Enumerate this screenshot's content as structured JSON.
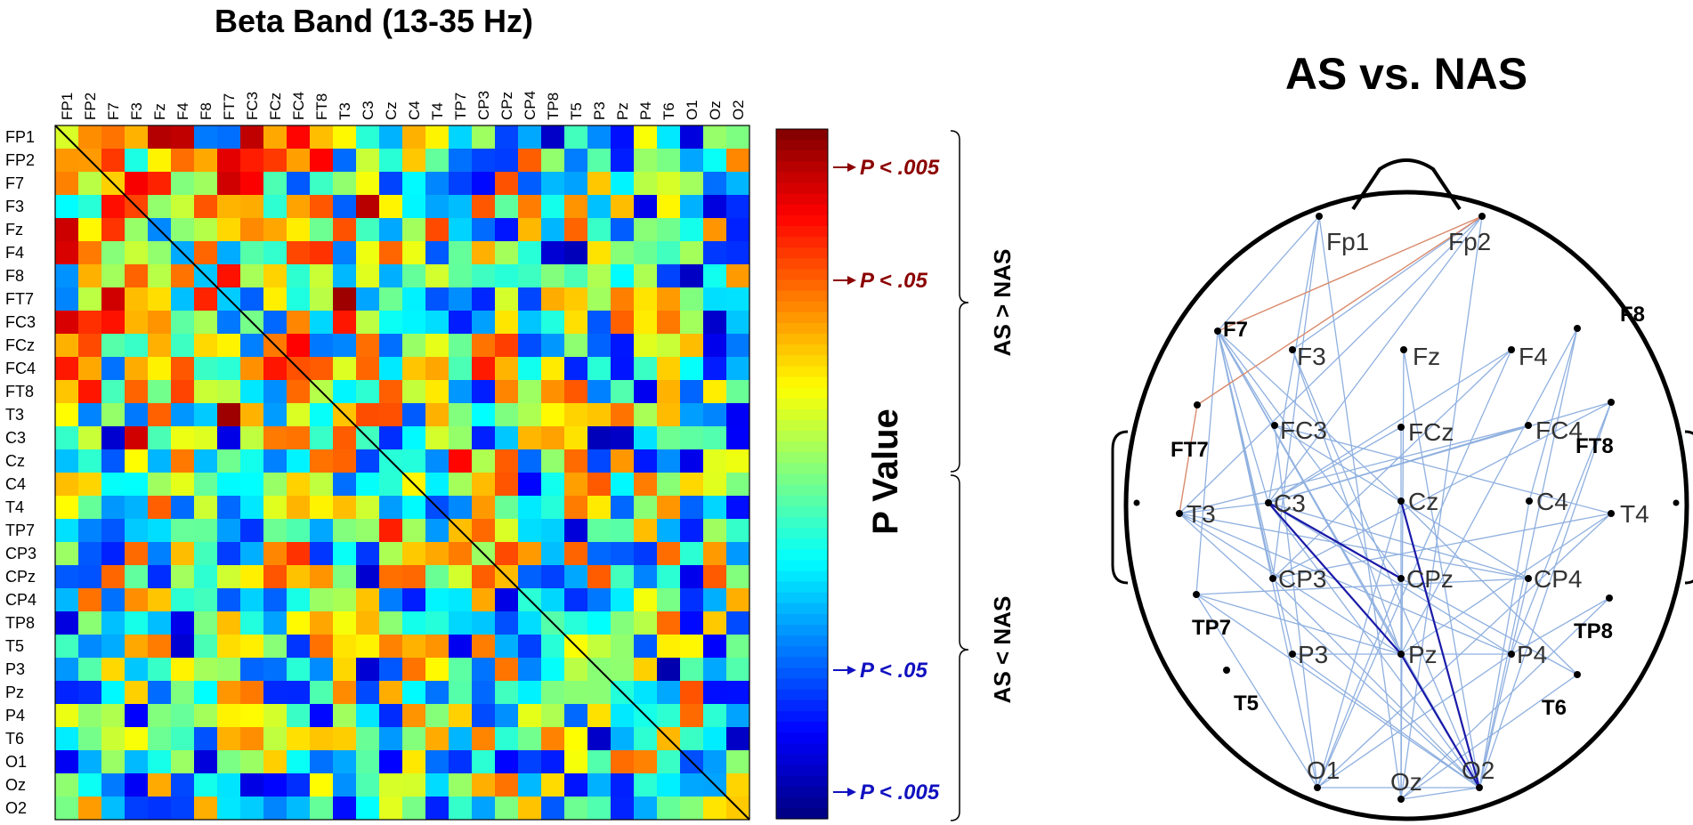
{
  "chart_data": [
    {
      "type": "heatmap",
      "title": "Beta Band (13-35 Hz)",
      "channels": [
        "FP1",
        "FP2",
        "F7",
        "F3",
        "Fz",
        "F4",
        "F8",
        "FT7",
        "FC3",
        "FCz",
        "FC4",
        "FT8",
        "T3",
        "C3",
        "Cz",
        "C4",
        "T4",
        "TP7",
        "CP3",
        "CPz",
        "CP4",
        "TP8",
        "T5",
        "P3",
        "Pz",
        "P4",
        "T6",
        "O1",
        "Oz",
        "O2"
      ],
      "colorbar": {
        "label": "P Value",
        "colormap": "jet",
        "markers": [
          {
            "text": "P < .005",
            "side": "AS > NAS",
            "color": "#8b0000"
          },
          {
            "text": "P < .05",
            "side": "AS > NAS",
            "color": "#8b0000"
          },
          {
            "text": "P < .05",
            "side": "AS < NAS",
            "color": "#1010c0"
          },
          {
            "text": "P < .005",
            "side": "AS < NAS",
            "color": "#1010c0"
          }
        ]
      },
      "bracket_labels": [
        "AS > NAS",
        "AS < NAS"
      ],
      "diagonal": true,
      "values_note": "cell colours read from image; values are approximate colormap levels in [0,1]"
    },
    {
      "type": "diagram",
      "title": "AS vs. NAS",
      "electrodes": [
        {
          "name": "Fp1",
          "bold": false
        },
        {
          "name": "Fp2",
          "bold": false
        },
        {
          "name": "F7",
          "bold": true
        },
        {
          "name": "F3",
          "bold": false
        },
        {
          "name": "Fz",
          "bold": false
        },
        {
          "name": "F4",
          "bold": false
        },
        {
          "name": "F8",
          "bold": true
        },
        {
          "name": "FT7",
          "bold": true
        },
        {
          "name": "FC3",
          "bold": false
        },
        {
          "name": "FCz",
          "bold": false
        },
        {
          "name": "FC4",
          "bold": false
        },
        {
          "name": "FT8",
          "bold": true
        },
        {
          "name": "T3",
          "bold": false
        },
        {
          "name": "C3",
          "bold": false
        },
        {
          "name": "Cz",
          "bold": false
        },
        {
          "name": "C4",
          "bold": false
        },
        {
          "name": "T4",
          "bold": false
        },
        {
          "name": "TP7",
          "bold": true
        },
        {
          "name": "CP3",
          "bold": false
        },
        {
          "name": "CPz",
          "bold": false
        },
        {
          "name": "CP4",
          "bold": false
        },
        {
          "name": "TP8",
          "bold": true
        },
        {
          "name": "T5",
          "bold": true
        },
        {
          "name": "P3",
          "bold": false
        },
        {
          "name": "Pz",
          "bold": false
        },
        {
          "name": "P4",
          "bold": false
        },
        {
          "name": "T6",
          "bold": true
        },
        {
          "name": "O1",
          "bold": false
        },
        {
          "name": "Oz",
          "bold": false
        },
        {
          "name": "O2",
          "bold": false
        }
      ],
      "edge_colors": {
        "as_greater": "#d98a6c",
        "as_less_weak": "#8fb0e0",
        "as_less_strong": "#1a1aa8"
      }
    }
  ]
}
